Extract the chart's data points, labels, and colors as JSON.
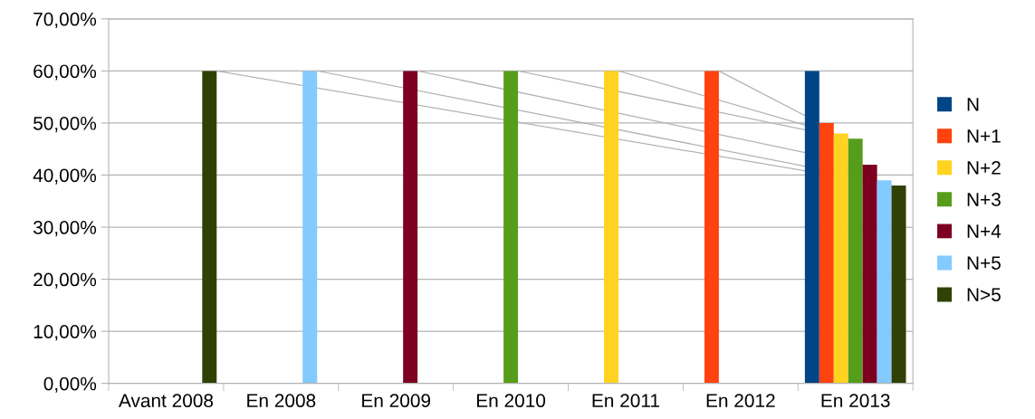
{
  "chart_data": {
    "type": "bar",
    "categories": [
      "Avant 2008",
      "En 2008",
      "En 2009",
      "En 2010",
      "En 2011",
      "En 2012",
      "En 2013"
    ],
    "series": [
      {
        "name": "N",
        "color": "#004586",
        "values": [
          null,
          null,
          null,
          null,
          null,
          null,
          60
        ]
      },
      {
        "name": "N+1",
        "color": "#ff420e",
        "values": [
          null,
          null,
          null,
          null,
          null,
          60,
          50
        ]
      },
      {
        "name": "N+2",
        "color": "#ffd320",
        "values": [
          null,
          null,
          null,
          null,
          60,
          null,
          48
        ]
      },
      {
        "name": "N+3",
        "color": "#579d1c",
        "values": [
          null,
          null,
          null,
          60,
          null,
          null,
          47
        ]
      },
      {
        "name": "N+4",
        "color": "#7e0021",
        "values": [
          null,
          null,
          60,
          null,
          null,
          null,
          42
        ]
      },
      {
        "name": "N+5",
        "color": "#83caff",
        "values": [
          null,
          60,
          null,
          null,
          null,
          null,
          39
        ]
      },
      {
        "name": "N>5",
        "color": "#314004",
        "values": [
          60,
          null,
          null,
          null,
          null,
          null,
          38
        ]
      }
    ],
    "ylim": [
      0,
      70
    ],
    "yticks": [
      {
        "value": 0,
        "label": "0,00%"
      },
      {
        "value": 10,
        "label": "10,00%"
      },
      {
        "value": 20,
        "label": "20,00%"
      },
      {
        "value": 30,
        "label": "30,00%"
      },
      {
        "value": 40,
        "label": "40,00%"
      },
      {
        "value": 50,
        "label": "50,00%"
      },
      {
        "value": 60,
        "label": "60,00%"
      },
      {
        "value": 70,
        "label": "70,00%"
      }
    ],
    "grid": "y",
    "legend": "right"
  }
}
